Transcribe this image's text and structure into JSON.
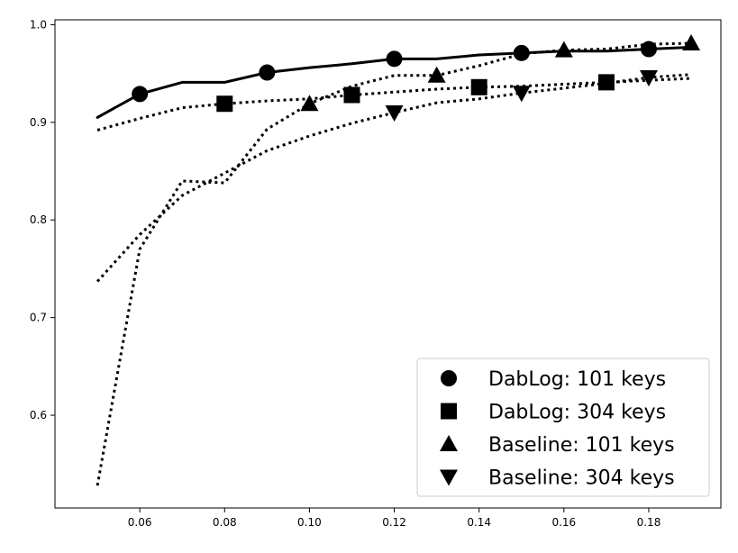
{
  "chart_data": {
    "type": "line",
    "title": "",
    "xlabel": "",
    "ylabel": "",
    "xlim": [
      0.04,
      0.197
    ],
    "ylim": [
      0.505,
      1.005
    ],
    "xticks": [
      0.06,
      0.08,
      0.1,
      0.12,
      0.14,
      0.16,
      0.18
    ],
    "xtick_labels": [
      "0.06",
      "0.08",
      "0.10",
      "0.12",
      "0.14",
      "0.16",
      "0.18"
    ],
    "yticks": [
      0.6,
      0.7,
      0.8,
      0.9,
      1.0
    ],
    "ytick_labels": [
      "0.6",
      "0.7",
      "0.8",
      "0.9",
      "1.0"
    ],
    "grid": false,
    "legend_position": "lower-right",
    "series": [
      {
        "name": "DabLog: 101 keys",
        "marker": "circle",
        "line_style": "solid",
        "color": "#000000",
        "x": [
          0.05,
          0.06,
          0.07,
          0.08,
          0.09,
          0.1,
          0.11,
          0.12,
          0.13,
          0.14,
          0.15,
          0.16,
          0.17,
          0.18,
          0.19
        ],
        "y": [
          0.905,
          0.929,
          0.941,
          0.941,
          0.951,
          0.956,
          0.96,
          0.965,
          0.965,
          0.969,
          0.971,
          0.973,
          0.973,
          0.975,
          0.977
        ],
        "marker_x": [
          0.06,
          0.09,
          0.12,
          0.15,
          0.18
        ]
      },
      {
        "name": "DabLog: 304 keys",
        "marker": "square",
        "line_style": "dotted",
        "color": "#000000",
        "x": [
          0.05,
          0.06,
          0.07,
          0.08,
          0.09,
          0.1,
          0.11,
          0.12,
          0.13,
          0.14,
          0.15,
          0.16,
          0.17,
          0.18,
          0.19
        ],
        "y": [
          0.892,
          0.904,
          0.915,
          0.919,
          0.922,
          0.924,
          0.928,
          0.931,
          0.934,
          0.936,
          0.937,
          0.939,
          0.941,
          0.943,
          0.945
        ],
        "marker_x": [
          0.08,
          0.11,
          0.14,
          0.17
        ]
      },
      {
        "name": "Baseline: 101 keys",
        "marker": "triangle-up",
        "line_style": "dotted",
        "color": "#000000",
        "x": [
          0.05,
          0.06,
          0.07,
          0.08,
          0.09,
          0.1,
          0.11,
          0.12,
          0.13,
          0.14,
          0.15,
          0.16,
          0.17,
          0.18,
          0.19
        ],
        "y": [
          0.528,
          0.77,
          0.84,
          0.838,
          0.893,
          0.919,
          0.937,
          0.948,
          0.948,
          0.958,
          0.97,
          0.974,
          0.975,
          0.98,
          0.981
        ],
        "marker_x": [
          0.1,
          0.13,
          0.16,
          0.19
        ]
      },
      {
        "name": "Baseline: 304 keys",
        "marker": "triangle-down",
        "line_style": "dotted",
        "color": "#000000",
        "x": [
          0.05,
          0.06,
          0.07,
          0.08,
          0.09,
          0.1,
          0.11,
          0.12,
          0.13,
          0.14,
          0.15,
          0.16,
          0.17,
          0.18,
          0.19
        ],
        "y": [
          0.737,
          0.785,
          0.825,
          0.848,
          0.871,
          0.886,
          0.899,
          0.91,
          0.92,
          0.924,
          0.93,
          0.935,
          0.94,
          0.946,
          0.949
        ],
        "marker_x": [
          0.12,
          0.15,
          0.18
        ]
      }
    ]
  }
}
